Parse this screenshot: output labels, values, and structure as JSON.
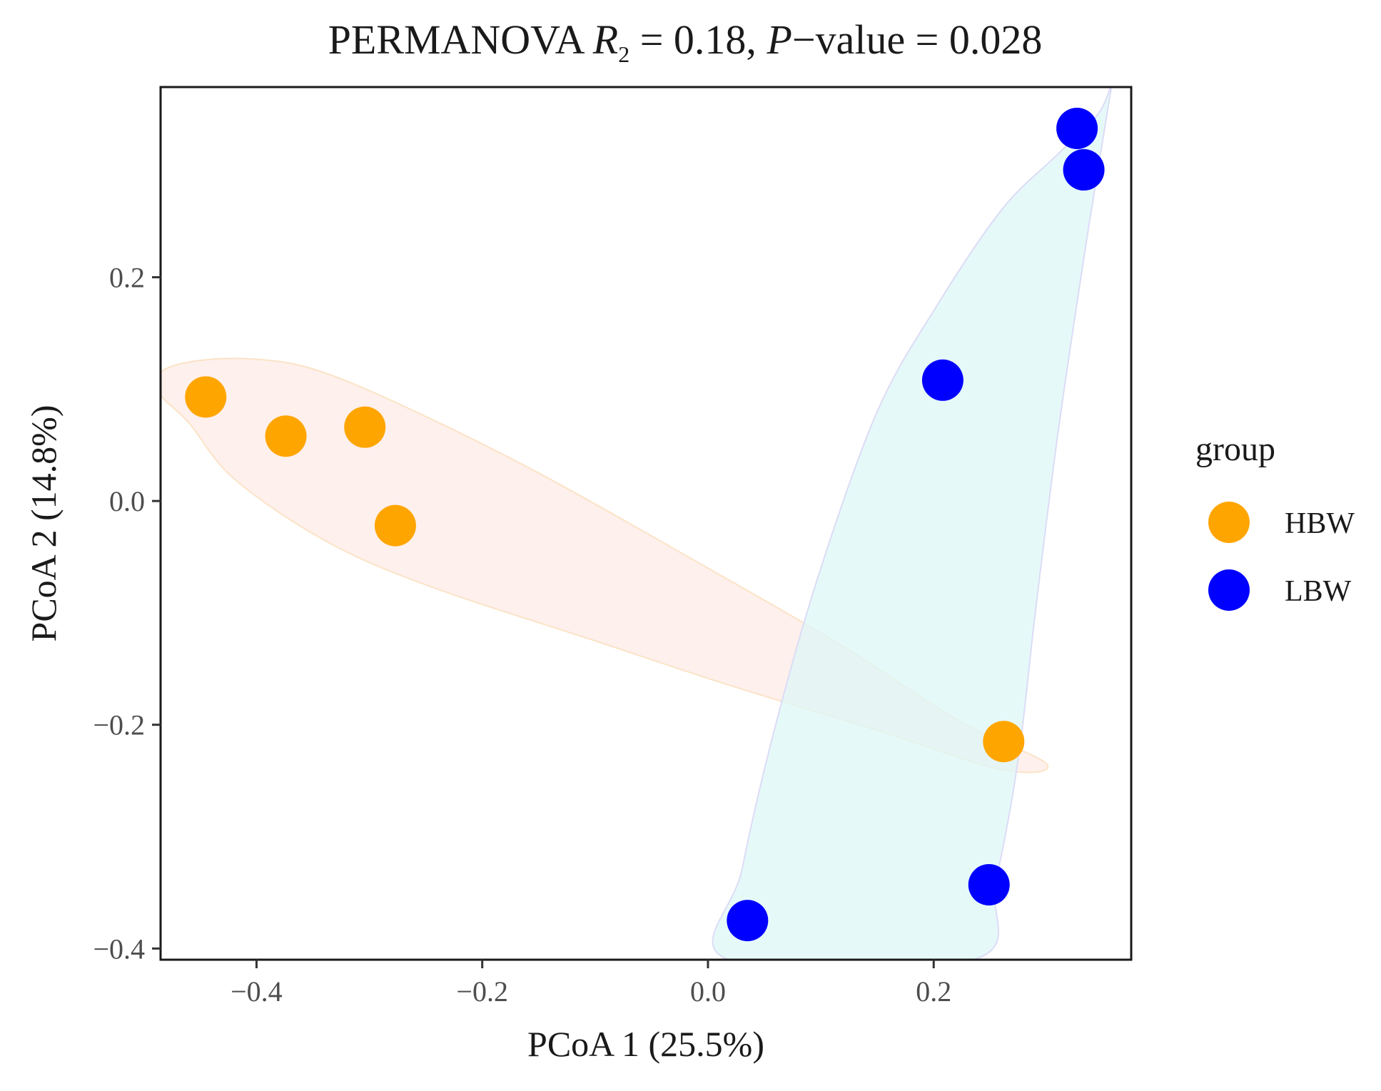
{
  "chart_data": {
    "type": "scatter",
    "title": {
      "prefix": "PERMANOVA ",
      "r_symbol": "R",
      "r_subscript": "2",
      "r_value": " = 0.18, ",
      "p_symbol": "P",
      "p_value": "−value = 0.028"
    },
    "xlabel": "PCoA 1 (25.5%)",
    "ylabel": "PCoA 2 (14.8%)",
    "xlim": [
      -0.485,
      0.375
    ],
    "ylim": [
      -0.41,
      0.37
    ],
    "x_ticks": [
      {
        "value": -0.4,
        "label": "−0.4"
      },
      {
        "value": -0.2,
        "label": "−0.2"
      },
      {
        "value": 0.0,
        "label": "0.0"
      },
      {
        "value": 0.2,
        "label": "0.2"
      }
    ],
    "y_ticks": [
      {
        "value": -0.4,
        "label": "−0.4"
      },
      {
        "value": -0.2,
        "label": "−0.2"
      },
      {
        "value": 0.0,
        "label": "0.0"
      },
      {
        "value": 0.2,
        "label": "0.2"
      }
    ],
    "grid": false,
    "legend": {
      "title": "group",
      "placement": "right",
      "entries": [
        "HBW",
        "LBW"
      ]
    },
    "series": [
      {
        "name": "HBW",
        "color": "#FFA500",
        "hull_fill": "#FDEBE5",
        "hull_stroke": "#FBE3C7",
        "points": [
          {
            "x": -0.445,
            "y": 0.093
          },
          {
            "x": -0.374,
            "y": 0.058
          },
          {
            "x": -0.304,
            "y": 0.066
          },
          {
            "x": -0.277,
            "y": -0.022
          },
          {
            "x": 0.262,
            "y": -0.215
          }
        ]
      },
      {
        "name": "LBW",
        "color": "#0000FF",
        "hull_fill": "#DEF7F7",
        "hull_stroke": "#DCDCF6",
        "points": [
          {
            "x": 0.327,
            "y": 0.333
          },
          {
            "x": 0.333,
            "y": 0.296
          },
          {
            "x": 0.208,
            "y": 0.108
          },
          {
            "x": 0.249,
            "y": -0.343
          },
          {
            "x": 0.035,
            "y": -0.375
          }
        ]
      }
    ],
    "ellipses": [
      {
        "series": "HBW",
        "path": [
          [
            -0.485,
            0.115
          ],
          [
            -0.455,
            0.125
          ],
          [
            -0.405,
            0.127
          ],
          [
            -0.35,
            0.118
          ],
          [
            -0.27,
            0.085
          ],
          [
            -0.15,
            0.025
          ],
          [
            0.0,
            -0.06
          ],
          [
            0.12,
            -0.13
          ],
          [
            0.22,
            -0.195
          ],
          [
            0.3,
            -0.235
          ],
          [
            0.26,
            -0.24
          ],
          [
            0.15,
            -0.205
          ],
          [
            0.02,
            -0.165
          ],
          [
            -0.1,
            -0.125
          ],
          [
            -0.25,
            -0.075
          ],
          [
            -0.34,
            -0.035
          ],
          [
            -0.42,
            0.02
          ],
          [
            -0.46,
            0.07
          ],
          [
            -0.485,
            0.095
          ]
        ]
      },
      {
        "series": "LBW",
        "path": [
          [
            0.018,
            -0.41
          ],
          [
            0.03,
            -0.33
          ],
          [
            0.06,
            -0.2
          ],
          [
            0.1,
            -0.06
          ],
          [
            0.15,
            0.08
          ],
          [
            0.2,
            0.17
          ],
          [
            0.26,
            0.26
          ],
          [
            0.31,
            0.31
          ],
          [
            0.345,
            0.345
          ],
          [
            0.357,
            0.37
          ],
          [
            0.355,
            0.355
          ],
          [
            0.335,
            0.23
          ],
          [
            0.31,
            0.06
          ],
          [
            0.29,
            -0.1
          ],
          [
            0.275,
            -0.23
          ],
          [
            0.255,
            -0.34
          ],
          [
            0.235,
            -0.41
          ]
        ]
      }
    ]
  }
}
